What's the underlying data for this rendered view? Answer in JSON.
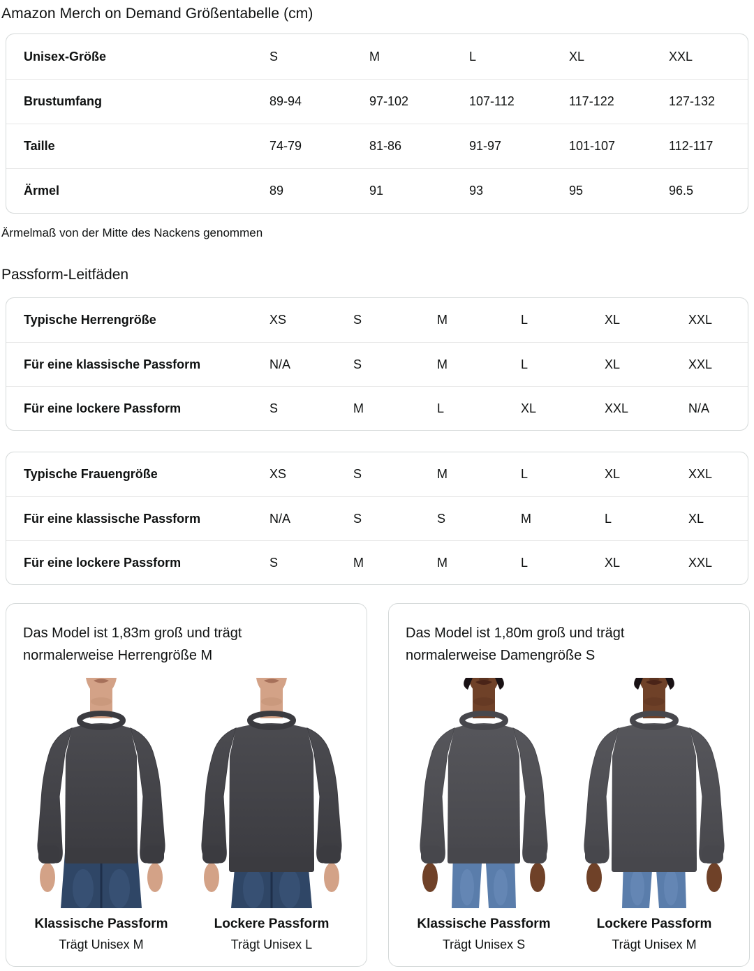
{
  "page": {
    "title": "Amazon Merch on Demand Größentabelle (cm)",
    "note": "Ärmelmaß von der Mitte des Nackens genommen",
    "fit_section_title": "Passform-Leitfäden"
  },
  "size_table": {
    "header_label": "Unisex-Größe",
    "header_sizes": [
      "S",
      "M",
      "L",
      "XL",
      "XXL"
    ],
    "rows": [
      {
        "label": "Brustumfang",
        "values": [
          "89-94",
          "97-102",
          "107-112",
          "117-122",
          "127-132"
        ]
      },
      {
        "label": "Taille",
        "values": [
          "74-79",
          "81-86",
          "91-97",
          "101-107",
          "112-117"
        ]
      },
      {
        "label": "Ärmel",
        "values": [
          "89",
          "91",
          "93",
          "95",
          "96.5"
        ]
      }
    ]
  },
  "fit_tables": [
    {
      "rows": [
        {
          "label": "Typische Herrengröße",
          "values": [
            "XS",
            "S",
            "M",
            "L",
            "XL",
            "XXL"
          ]
        },
        {
          "label": "Für eine klassische Passform",
          "values": [
            "N/A",
            "S",
            "M",
            "L",
            "XL",
            "XXL"
          ]
        },
        {
          "label": "Für eine lockere Passform",
          "values": [
            "S",
            "M",
            "L",
            "XL",
            "XXL",
            "N/A"
          ]
        }
      ]
    },
    {
      "rows": [
        {
          "label": "Typische Frauengröße",
          "values": [
            "XS",
            "S",
            "M",
            "L",
            "XL",
            "XXL"
          ]
        },
        {
          "label": "Für eine klassische Passform",
          "values": [
            "N/A",
            "S",
            "S",
            "M",
            "L",
            "XL"
          ]
        },
        {
          "label": "Für eine lockere Passform",
          "values": [
            "S",
            "M",
            "M",
            "L",
            "XL",
            "XXL"
          ]
        }
      ]
    }
  ],
  "model_cards": [
    {
      "description": "Das Model ist 1,83m groß und trägt normalerweise Herrengröße M",
      "figures": [
        {
          "photo": "male-classic",
          "fit_label": "Klassische Passform",
          "size_label": "Trägt Unisex M"
        },
        {
          "photo": "male-loose",
          "fit_label": "Lockere Passform",
          "size_label": "Trägt Unisex L"
        }
      ]
    },
    {
      "description": "Das Model ist 1,80m groß und trägt normalerweise Damengröße S",
      "figures": [
        {
          "photo": "female-classic",
          "fit_label": "Klassische Passform",
          "size_label": "Trägt Unisex S"
        },
        {
          "photo": "female-loose",
          "fit_label": "Lockere Passform",
          "size_label": "Trägt Unisex M"
        }
      ]
    }
  ],
  "colors": {
    "text": "#0f1111",
    "table_border": "#d5d9d9",
    "row_divider": "#e7e7e7",
    "sweatshirt_male": "#4b4b50",
    "sweatshirt_female": "#56565b",
    "jeans_male": "#2f4666",
    "jeans_female": "#5a7dab",
    "skin_male": "#d3a287",
    "skin_female": "#6f4128"
  }
}
